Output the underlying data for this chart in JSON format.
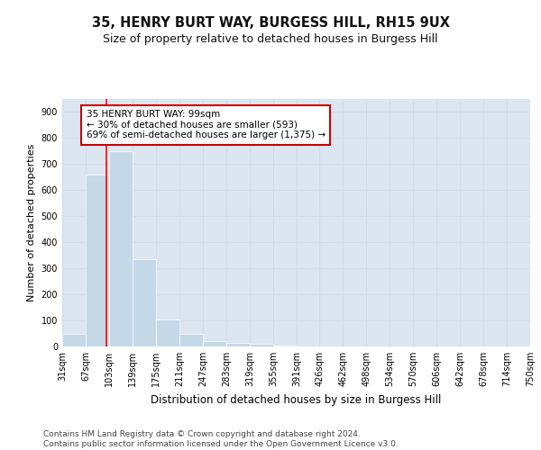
{
  "title": "35, HENRY BURT WAY, BURGESS HILL, RH15 9UX",
  "subtitle": "Size of property relative to detached houses in Burgess Hill",
  "xlabel": "Distribution of detached houses by size in Burgess Hill",
  "ylabel": "Number of detached properties",
  "bar_values": [
    49,
    660,
    750,
    335,
    105,
    49,
    22,
    15,
    10,
    5,
    0,
    0,
    0,
    0,
    0,
    0,
    0,
    0,
    0,
    0
  ],
  "bin_edges": [
    31,
    67,
    103,
    139,
    175,
    211,
    247,
    283,
    319,
    355,
    391,
    426,
    462,
    498,
    534,
    570,
    606,
    642,
    678,
    714,
    750
  ],
  "tick_labels": [
    "31sqm",
    "67sqm",
    "103sqm",
    "139sqm",
    "175sqm",
    "211sqm",
    "247sqm",
    "283sqm",
    "319sqm",
    "355sqm",
    "391sqm",
    "426sqm",
    "462sqm",
    "498sqm",
    "534sqm",
    "570sqm",
    "606sqm",
    "642sqm",
    "678sqm",
    "714sqm",
    "750sqm"
  ],
  "bar_color": "#c5d8e8",
  "red_line_x": 99,
  "annotation_text": "35 HENRY BURT WAY: 99sqm\n← 30% of detached houses are smaller (593)\n69% of semi-detached houses are larger (1,375) →",
  "annotation_box_color": "#ffffff",
  "annotation_border_color": "#cc0000",
  "grid_color": "#d0dce8",
  "background_color": "#dce6f0",
  "ylim": [
    0,
    950
  ],
  "yticks": [
    0,
    100,
    200,
    300,
    400,
    500,
    600,
    700,
    800,
    900
  ],
  "footer_text": "Contains HM Land Registry data © Crown copyright and database right 2024.\nContains public sector information licensed under the Open Government Licence v3.0.",
  "title_fontsize": 10.5,
  "subtitle_fontsize": 9,
  "xlabel_fontsize": 8.5,
  "ylabel_fontsize": 8,
  "tick_fontsize": 7,
  "footer_fontsize": 6.5
}
